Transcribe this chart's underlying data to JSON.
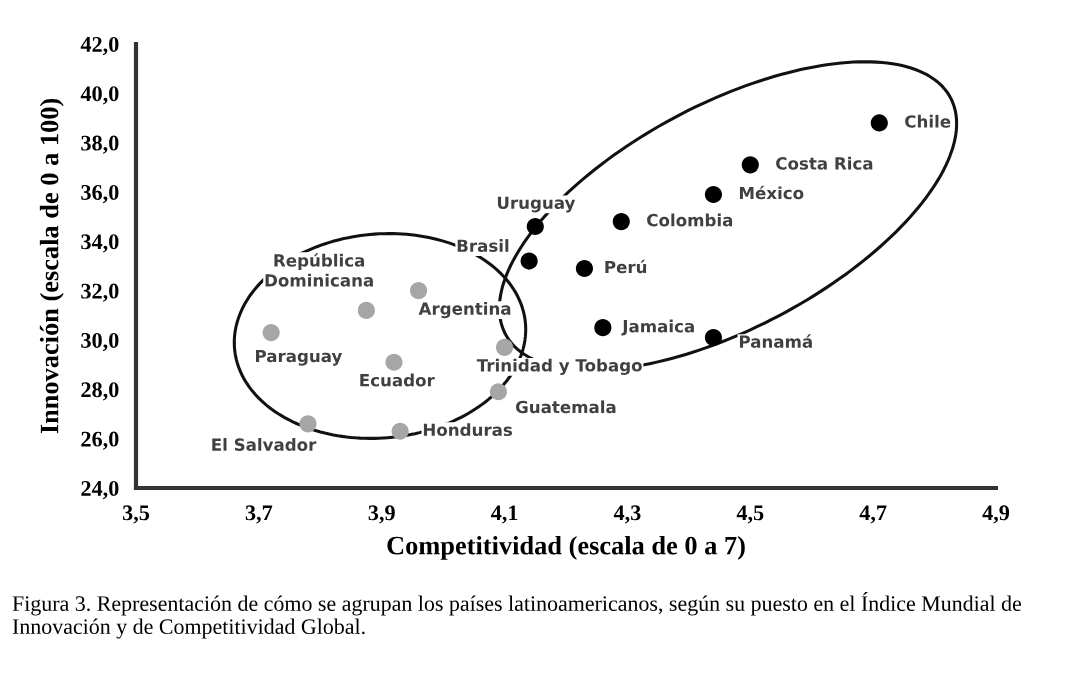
{
  "chart_data": {
    "type": "scatter",
    "xlabel": "Competitividad (escala de 0 a 7)",
    "ylabel": "Innovación (escala de 0 a 100)",
    "xlim": [
      3.5,
      4.9
    ],
    "ylim": [
      24,
      42
    ],
    "xticks": [
      {
        "value": 3.5,
        "label": "3,5"
      },
      {
        "value": 3.7,
        "label": "3,7"
      },
      {
        "value": 3.9,
        "label": "3,9"
      },
      {
        "value": 4.1,
        "label": "4,1"
      },
      {
        "value": 4.3,
        "label": "4,3"
      },
      {
        "value": 4.5,
        "label": "4,5"
      },
      {
        "value": 4.7,
        "label": "4,7"
      },
      {
        "value": 4.9,
        "label": "4,9"
      }
    ],
    "yticks": [
      {
        "value": 24,
        "label": "24,0"
      },
      {
        "value": 26,
        "label": "26,0"
      },
      {
        "value": 28,
        "label": "28,0"
      },
      {
        "value": 30,
        "label": "30,0"
      },
      {
        "value": 32,
        "label": "32,0"
      },
      {
        "value": 34,
        "label": "34,0"
      },
      {
        "value": 36,
        "label": "36,0"
      },
      {
        "value": 38,
        "label": "38,0"
      },
      {
        "value": 40,
        "label": "40,0"
      },
      {
        "value": 42,
        "label": "42,0"
      }
    ],
    "grid": false,
    "legend": false,
    "marker": "circle",
    "series": [
      {
        "color": "#a6a6a6",
        "x": [
          3.72,
          3.875,
          3.96,
          3.92,
          3.78,
          3.93,
          4.1,
          4.09
        ],
        "values": [
          30.3,
          31.2,
          32.0,
          29.1,
          26.6,
          26.3,
          29.7,
          27.9
        ]
      },
      {
        "color": "#000000",
        "x": [
          4.15,
          4.14,
          4.23,
          4.29,
          4.44,
          4.5,
          4.71,
          4.26,
          4.44
        ],
        "values": [
          34.6,
          33.2,
          32.9,
          34.8,
          35.9,
          37.1,
          38.8,
          30.5,
          30.1
        ]
      }
    ],
    "annotations": [
      {
        "text": "Paraguay",
        "x": 3.72,
        "y": 30.3
      },
      {
        "text": "República\nDominicana",
        "x": 3.875,
        "y": 31.2
      },
      {
        "text": "Argentina",
        "x": 3.96,
        "y": 32.0
      },
      {
        "text": "Ecuador",
        "x": 3.92,
        "y": 29.1
      },
      {
        "text": "El Salvador",
        "x": 3.78,
        "y": 26.6
      },
      {
        "text": "Honduras",
        "x": 3.93,
        "y": 26.3
      },
      {
        "text": "Trinidad y Tobago",
        "x": 4.1,
        "y": 29.7
      },
      {
        "text": "Guatemala",
        "x": 4.09,
        "y": 27.9
      },
      {
        "text": "Uruguay",
        "x": 4.15,
        "y": 34.6
      },
      {
        "text": "Brasil",
        "x": 4.14,
        "y": 33.2
      },
      {
        "text": "Perú",
        "x": 4.23,
        "y": 32.9
      },
      {
        "text": "Colombia",
        "x": 4.29,
        "y": 34.8
      },
      {
        "text": "México",
        "x": 4.44,
        "y": 35.9
      },
      {
        "text": "Costa Rica",
        "x": 4.5,
        "y": 37.1
      },
      {
        "text": "Chile",
        "x": 4.71,
        "y": 38.8
      },
      {
        "text": "Jamaica",
        "x": 4.26,
        "y": 30.5
      },
      {
        "text": "Panamá",
        "x": 4.44,
        "y": 30.1
      },
      "Figura 3. Representación de cómo se agrupan los países latinoamericanos, según su puesto en el Índice Mundial de Innovación y de Competitividad Global."
    ]
  }
}
